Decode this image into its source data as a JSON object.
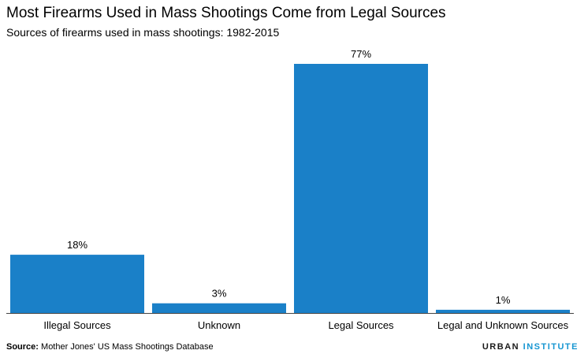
{
  "title": "Most Firearms Used in Mass Shootings Come from Legal Sources",
  "subtitle": "Sources of firearms used in mass shootings: 1982-2015",
  "footer": {
    "source_label": "Source:",
    "source_text": " Mother Jones' US Mass Shootings Database",
    "logo_urban": "URBAN",
    "logo_institute": "INSTITUTE"
  },
  "colors": {
    "bar": "#1a80c8",
    "axis": "#444444"
  },
  "chart_data": {
    "type": "bar",
    "title": "Most Firearms Used in Mass Shootings Come from Legal Sources",
    "subtitle": "Sources of firearms used in mass shootings: 1982-2015",
    "categories": [
      "Illegal Sources",
      "Unknown",
      "Legal Sources",
      "Legal and Unknown Sources"
    ],
    "values": [
      18,
      3,
      77,
      1
    ],
    "value_labels": [
      "18%",
      "3%",
      "77%",
      "1%"
    ],
    "unit": "%",
    "ylim": [
      0,
      77
    ],
    "xlabel": "",
    "ylabel": "",
    "grid": false,
    "legend": "none"
  }
}
